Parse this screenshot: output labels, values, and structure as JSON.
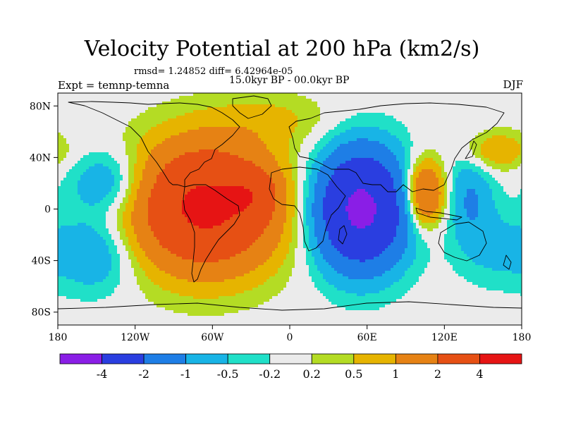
{
  "title": "Velocity Potential at 200 hPa (km2/s)",
  "stats_line": "rmsd= 1.24852 diff= 6.42964e-05",
  "experiment": "Expt = temnp-temna",
  "period": "15.0kyr BP - 00.0kyr BP",
  "season": "DJF",
  "axes": {
    "x_ticks": [
      {
        "value": -180,
        "label": "180"
      },
      {
        "value": -120,
        "label": "120W"
      },
      {
        "value": -60,
        "label": "60W"
      },
      {
        "value": 0,
        "label": "0"
      },
      {
        "value": 60,
        "label": "60E"
      },
      {
        "value": 120,
        "label": "120E"
      },
      {
        "value": 180,
        "label": "180"
      }
    ],
    "y_ticks": [
      {
        "value": 80,
        "label": "80N"
      },
      {
        "value": 40,
        "label": "40N"
      },
      {
        "value": 0,
        "label": "0"
      },
      {
        "value": -40,
        "label": "40S"
      },
      {
        "value": -80,
        "label": "80S"
      }
    ],
    "lon_range": [
      -180,
      180
    ],
    "lat_range": [
      -90,
      90
    ]
  },
  "colorbar": {
    "colors": [
      "#8a1ee6",
      "#2a3ee0",
      "#1e7ee6",
      "#18b4e6",
      "#20e0c8",
      "#ebebeb",
      "#b4dc24",
      "#e6b400",
      "#e68214",
      "#e65014",
      "#e61414"
    ],
    "labels": [
      {
        "boundary": 1,
        "label": "-4"
      },
      {
        "boundary": 2,
        "label": "-2"
      },
      {
        "boundary": 3,
        "label": "-1"
      },
      {
        "boundary": 4,
        "label": "-0.5"
      },
      {
        "boundary": 5,
        "label": "-0.2"
      },
      {
        "boundary": 6,
        "label": "0.2"
      },
      {
        "boundary": 7,
        "label": "0.5"
      },
      {
        "boundary": 8,
        "label": "1"
      },
      {
        "boundary": 9,
        "label": "2"
      },
      {
        "boundary": 10,
        "label": "4"
      }
    ]
  },
  "field_centers": [
    {
      "lon": -65,
      "lat": 2,
      "value": 4.5,
      "slon": 55,
      "slat": 48
    },
    {
      "lon": -28,
      "lat": 12,
      "value": 1.2,
      "slon": 18,
      "slat": 18
    },
    {
      "lon": 105,
      "lat": 12,
      "value": 2.5,
      "slon": 15,
      "slat": 25
    },
    {
      "lon": 55,
      "lat": 0,
      "value": -4.5,
      "slon": 35,
      "slat": 45
    },
    {
      "lon": 160,
      "lat": 45,
      "value": 1.0,
      "slon": 25,
      "slat": 15
    },
    {
      "lon": -140,
      "lat": 20,
      "value": -1.2,
      "slon": 30,
      "slat": 25
    },
    {
      "lon": -150,
      "lat": -35,
      "value": -1.0,
      "slon": 30,
      "slat": 30
    },
    {
      "lon": 140,
      "lat": 10,
      "value": -1.0,
      "slon": 18,
      "slat": 35
    },
    {
      "lon": -10,
      "lat": 70,
      "value": 0.5,
      "slon": 50,
      "slat": 20
    },
    {
      "lon": 160,
      "lat": -30,
      "value": -0.6,
      "slon": 30,
      "slat": 30
    }
  ]
}
